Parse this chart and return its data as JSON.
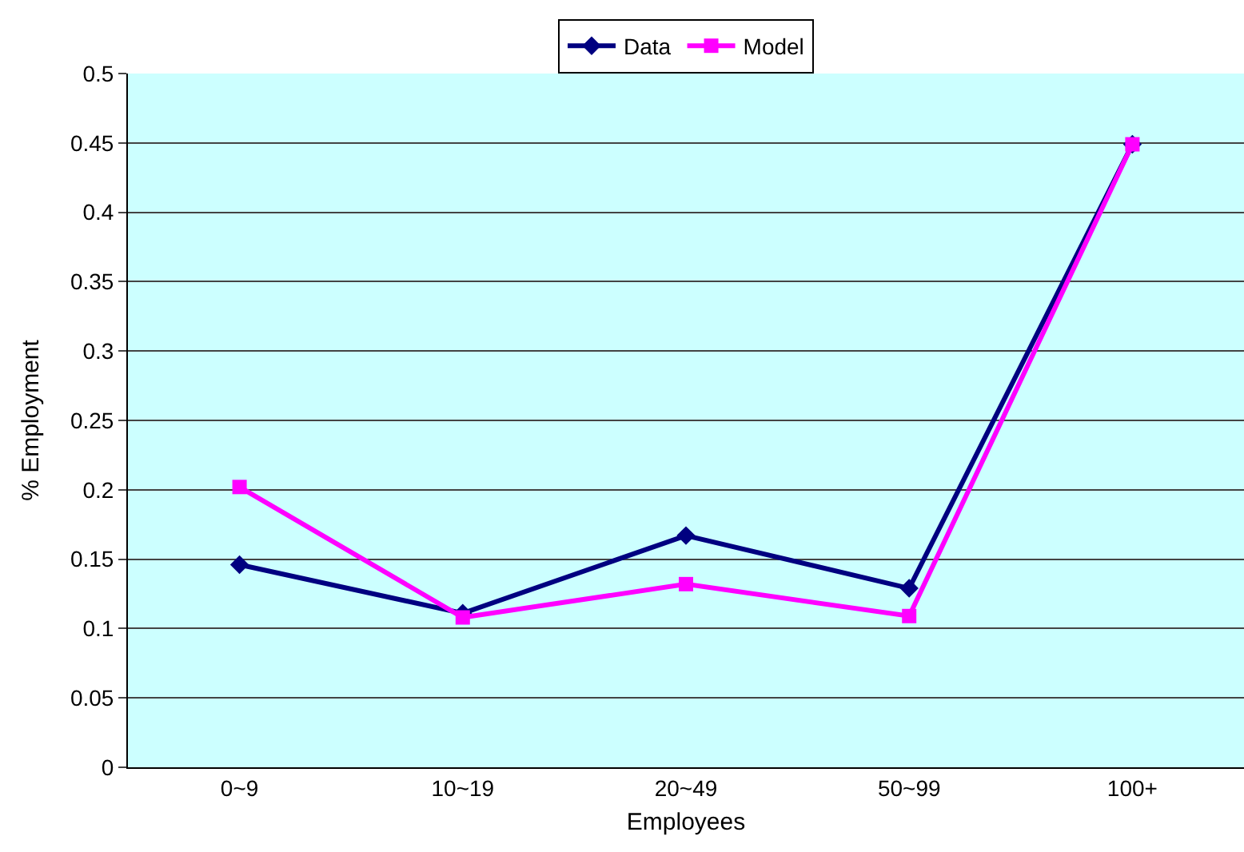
{
  "chart_data": {
    "type": "line",
    "xlabel": "Employees",
    "ylabel": "% Employment",
    "categories": [
      "0~9",
      "10~19",
      "20~49",
      "50~99",
      "100+"
    ],
    "series": [
      {
        "name": "Data",
        "color": "#000080",
        "marker": "diamond",
        "values": [
          0.146,
          0.111,
          0.167,
          0.129,
          0.449
        ]
      },
      {
        "name": "Model",
        "color": "#ff00ff",
        "marker": "square",
        "values": [
          0.202,
          0.108,
          0.132,
          0.109,
          0.449
        ]
      }
    ],
    "ylim": [
      0,
      0.5
    ],
    "yticks": [
      0,
      0.05,
      0.1,
      0.15,
      0.2,
      0.25,
      0.3,
      0.35,
      0.4,
      0.45,
      0.5
    ],
    "grid": "y",
    "legend": "top"
  }
}
